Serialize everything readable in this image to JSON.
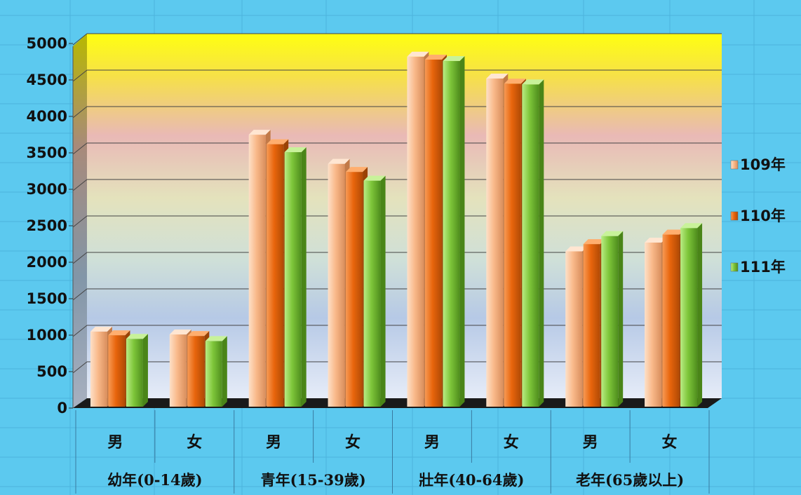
{
  "chart_data": {
    "type": "bar",
    "style": "3d-clustered-column",
    "groups": [
      "幼年(0-14歲)",
      "青年(15-39歲)",
      "壯年(40-64歲)",
      "老年(65歲以上)"
    ],
    "categories": [
      "男",
      "女",
      "男",
      "女",
      "男",
      "女",
      "男",
      "女"
    ],
    "series": [
      {
        "name": "109年",
        "color": "#f9b98a",
        "values": [
          1030,
          990,
          3730,
          3330,
          4800,
          4500,
          2130,
          2250
        ]
      },
      {
        "name": "110年",
        "color": "#e8650c",
        "values": [
          980,
          970,
          3600,
          3220,
          4760,
          4430,
          2230,
          2360
        ]
      },
      {
        "name": "111年",
        "color": "#7ec63a",
        "values": [
          930,
          900,
          3490,
          3100,
          4740,
          4420,
          2340,
          2450
        ]
      }
    ],
    "yticks": [
      "0",
      "500",
      "1000",
      "1500",
      "2000",
      "2500",
      "3000",
      "3500",
      "4000",
      "4500",
      "5000"
    ],
    "ylim": [
      0,
      5000
    ],
    "grid": true,
    "legend_position": "right",
    "background_gradient": [
      "#ffff00",
      "#e8b8b8",
      "#dde8c8",
      "#b8cce8",
      "#e8eef8"
    ]
  }
}
